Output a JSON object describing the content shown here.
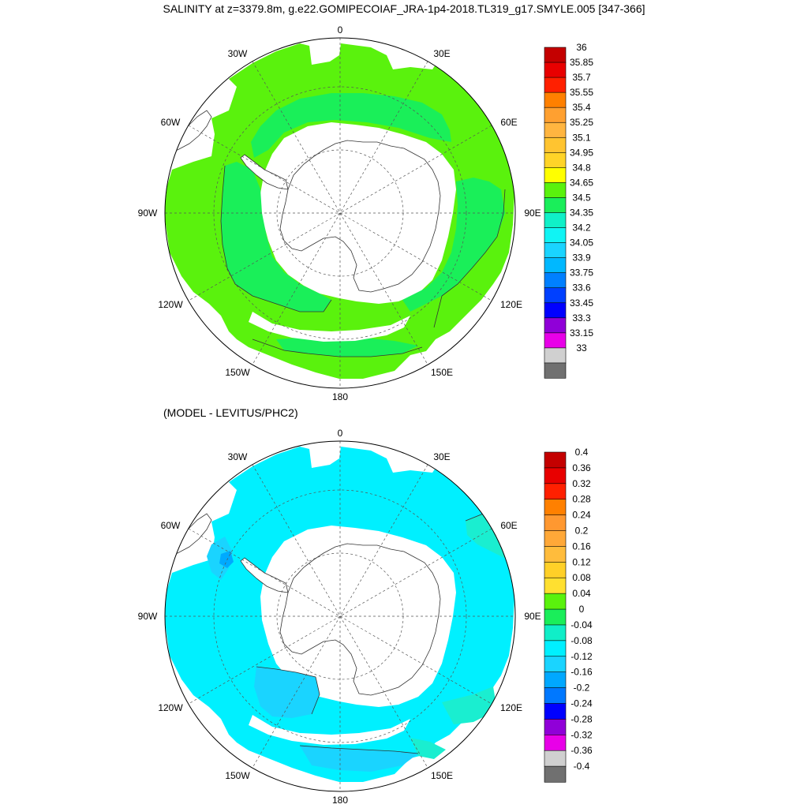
{
  "title": "SALINITY at z=3379.8m, g.e22.GOMIPECOIAF_JRA-1p4-2018.TL319_g17.SMYLE.005 [347-366]",
  "subtitle": "(MODEL - LEVITUS/PHC2)",
  "longitude_labels": {
    "top": "0",
    "upper_left": "30W",
    "upper_right": "30E",
    "left_upper": "60W",
    "right_upper": "60E",
    "left": "90W",
    "right": "90E",
    "left_lower": "120W",
    "right_lower": "120E",
    "lower_left": "150W",
    "lower_right": "150E",
    "bottom": "180"
  },
  "colors": {
    "land": "#ffffff",
    "coast": "#333333",
    "grid": "#555555",
    "top_field": "#5af20d",
    "top_field_alt": "#1aef59",
    "bottom_field": "#00f0ff",
    "bottom_field_alt": "#1ad4ff",
    "bottom_field_neg": "#00aaff",
    "bottom_field_pos": "#1aeed0"
  },
  "colorbar_top": {
    "labels": [
      "36",
      "35.85",
      "35.7",
      "35.55",
      "35.4",
      "35.25",
      "35.1",
      "34.95",
      "34.8",
      "34.65",
      "34.5",
      "34.35",
      "34.2",
      "34.05",
      "33.9",
      "33.75",
      "33.6",
      "33.45",
      "33.3",
      "33.15",
      "33"
    ],
    "colors": [
      "#c40000",
      "#e80000",
      "#ff2000",
      "#ff8000",
      "#ffa030",
      "#ffb540",
      "#ffc430",
      "#ffd428",
      "#ffff00",
      "#5af20d",
      "#1aee5a",
      "#10f0c8",
      "#10f4f4",
      "#1ad4ff",
      "#00b8ff",
      "#0080ff",
      "#0040ff",
      "#0000ff",
      "#9000d8",
      "#e800e8",
      "#d0d0d0",
      "#707070"
    ]
  },
  "colorbar_bottom": {
    "labels": [
      "0.4",
      "0.36",
      "0.32",
      "0.28",
      "0.24",
      "0.2",
      "0.16",
      "0.12",
      "0.08",
      "0.04",
      "0",
      "-0.04",
      "-0.08",
      "-0.12",
      "-0.16",
      "-0.2",
      "-0.24",
      "-0.28",
      "-0.32",
      "-0.36",
      "-0.4"
    ],
    "colors": [
      "#c40000",
      "#e80000",
      "#ff2000",
      "#ff8000",
      "#ff9830",
      "#ffa838",
      "#ffbc3c",
      "#ffd028",
      "#ffe030",
      "#5af20d",
      "#1aee5a",
      "#10eec8",
      "#00f0ff",
      "#1ad4ff",
      "#00a8ff",
      "#0078ff",
      "#0000ff",
      "#9000d8",
      "#e800e8",
      "#d0d0d0",
      "#707070"
    ]
  }
}
